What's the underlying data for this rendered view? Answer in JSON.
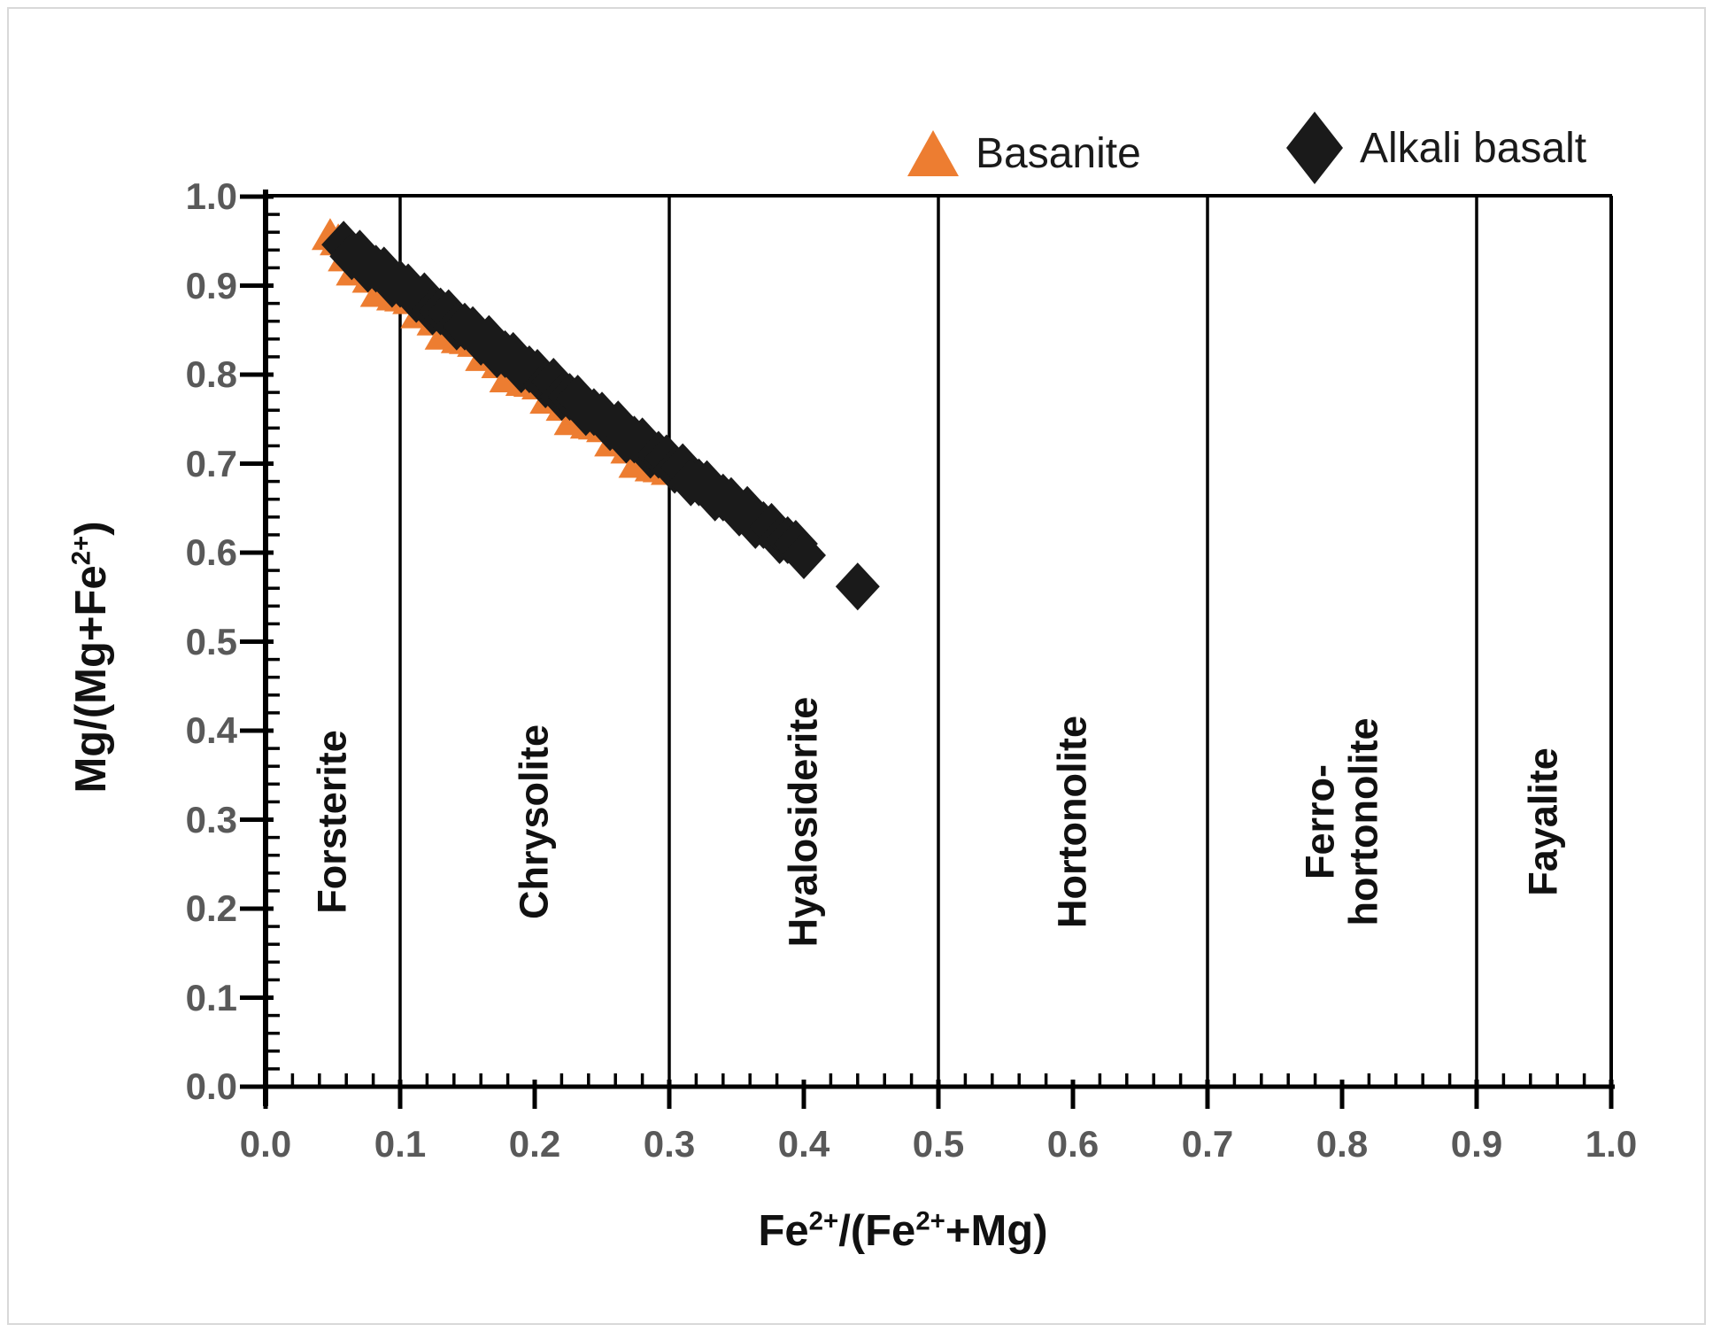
{
  "chart_data": {
    "type": "scatter",
    "title": "",
    "xlabel": "Fe^{2+}/(Fe^{2+}+Mg)",
    "ylabel": "Mg/(Mg+Fe^{2+})",
    "xlim": [
      0.0,
      1.0
    ],
    "ylim": [
      0.0,
      1.0
    ],
    "x_tick_labels": [
      "0.0",
      "0.1",
      "0.2",
      "0.3",
      "0.4",
      "0.5",
      "0.6",
      "0.7",
      "0.8",
      "0.9",
      "1.0"
    ],
    "y_tick_labels": [
      "0.0",
      "0.1",
      "0.2",
      "0.3",
      "0.4",
      "0.5",
      "0.6",
      "0.7",
      "0.8",
      "0.9",
      "1.0"
    ],
    "major_tick_step": 0.1,
    "minor_tick_step": 0.02,
    "grid": false,
    "legend_position": "top",
    "axis_color": "#000000",
    "tick_label_color": "#595959",
    "regions": {
      "divider_x": [
        0.1,
        0.3,
        0.5,
        0.7,
        0.9
      ],
      "labels": [
        {
          "text": "Forsterite",
          "x": 0.05
        },
        {
          "text": "Chrysolite",
          "x": 0.2
        },
        {
          "text": "Hyalosiderite",
          "x": 0.4
        },
        {
          "text": "Hortonolite",
          "x": 0.6
        },
        {
          "text": "Ferro-\nhortonolite",
          "x": 0.8
        },
        {
          "text": "Fayalite",
          "x": 0.95
        }
      ]
    },
    "series": [
      {
        "name": "Basanite",
        "marker": "triangle",
        "color": "#ED7D31",
        "points": [
          [
            0.048,
            0.956
          ],
          [
            0.054,
            0.95
          ],
          [
            0.06,
            0.932
          ],
          [
            0.066,
            0.916
          ],
          [
            0.072,
            0.924
          ],
          [
            0.078,
            0.908
          ],
          [
            0.084,
            0.892
          ],
          [
            0.09,
            0.904
          ],
          [
            0.096,
            0.888
          ],
          [
            0.102,
            0.887
          ],
          [
            0.108,
            0.884
          ],
          [
            0.114,
            0.868
          ],
          [
            0.12,
            0.876
          ],
          [
            0.126,
            0.86
          ],
          [
            0.132,
            0.844
          ],
          [
            0.138,
            0.856
          ],
          [
            0.144,
            0.84
          ],
          [
            0.15,
            0.839
          ],
          [
            0.156,
            0.836
          ],
          [
            0.162,
            0.82
          ],
          [
            0.168,
            0.828
          ],
          [
            0.174,
            0.812
          ],
          [
            0.18,
            0.796
          ],
          [
            0.186,
            0.808
          ],
          [
            0.192,
            0.792
          ],
          [
            0.198,
            0.791
          ],
          [
            0.204,
            0.788
          ],
          [
            0.21,
            0.772
          ],
          [
            0.216,
            0.78
          ],
          [
            0.222,
            0.764
          ],
          [
            0.228,
            0.748
          ],
          [
            0.234,
            0.76
          ],
          [
            0.24,
            0.744
          ],
          [
            0.246,
            0.743
          ],
          [
            0.252,
            0.74
          ],
          [
            0.258,
            0.724
          ],
          [
            0.264,
            0.732
          ],
          [
            0.27,
            0.716
          ],
          [
            0.276,
            0.7
          ],
          [
            0.282,
            0.712
          ],
          [
            0.288,
            0.696
          ],
          [
            0.294,
            0.695
          ],
          [
            0.3,
            0.692
          ]
        ]
      },
      {
        "name": "Alkali basalt",
        "marker": "diamond",
        "color": "#1A1A1A",
        "points": [
          [
            0.058,
            0.946
          ],
          [
            0.064,
            0.933
          ],
          [
            0.07,
            0.936
          ],
          [
            0.076,
            0.919
          ],
          [
            0.082,
            0.919
          ],
          [
            0.088,
            0.917
          ],
          [
            0.094,
            0.902
          ],
          [
            0.1,
            0.902
          ],
          [
            0.106,
            0.898
          ],
          [
            0.112,
            0.885
          ],
          [
            0.118,
            0.888
          ],
          [
            0.124,
            0.871
          ],
          [
            0.13,
            0.871
          ],
          [
            0.136,
            0.869
          ],
          [
            0.142,
            0.854
          ],
          [
            0.148,
            0.854
          ],
          [
            0.154,
            0.85
          ],
          [
            0.16,
            0.837
          ],
          [
            0.166,
            0.84
          ],
          [
            0.172,
            0.823
          ],
          [
            0.178,
            0.823
          ],
          [
            0.184,
            0.821
          ],
          [
            0.19,
            0.806
          ],
          [
            0.196,
            0.806
          ],
          [
            0.202,
            0.802
          ],
          [
            0.208,
            0.789
          ],
          [
            0.214,
            0.792
          ],
          [
            0.22,
            0.775
          ],
          [
            0.226,
            0.775
          ],
          [
            0.232,
            0.773
          ],
          [
            0.238,
            0.758
          ],
          [
            0.244,
            0.758
          ],
          [
            0.25,
            0.754
          ],
          [
            0.256,
            0.741
          ],
          [
            0.262,
            0.744
          ],
          [
            0.268,
            0.727
          ],
          [
            0.274,
            0.727
          ],
          [
            0.28,
            0.725
          ],
          [
            0.286,
            0.71
          ],
          [
            0.292,
            0.71
          ],
          [
            0.298,
            0.706
          ],
          [
            0.304,
            0.693
          ],
          [
            0.31,
            0.696
          ],
          [
            0.316,
            0.679
          ],
          [
            0.322,
            0.679
          ],
          [
            0.328,
            0.677
          ],
          [
            0.334,
            0.662
          ],
          [
            0.34,
            0.662
          ],
          [
            0.346,
            0.658
          ],
          [
            0.352,
            0.645
          ],
          [
            0.358,
            0.648
          ],
          [
            0.364,
            0.631
          ],
          [
            0.37,
            0.631
          ],
          [
            0.376,
            0.629
          ],
          [
            0.382,
            0.614
          ],
          [
            0.388,
            0.614
          ],
          [
            0.394,
            0.61
          ],
          [
            0.4,
            0.597
          ],
          [
            0.44,
            0.562
          ]
        ]
      }
    ]
  }
}
